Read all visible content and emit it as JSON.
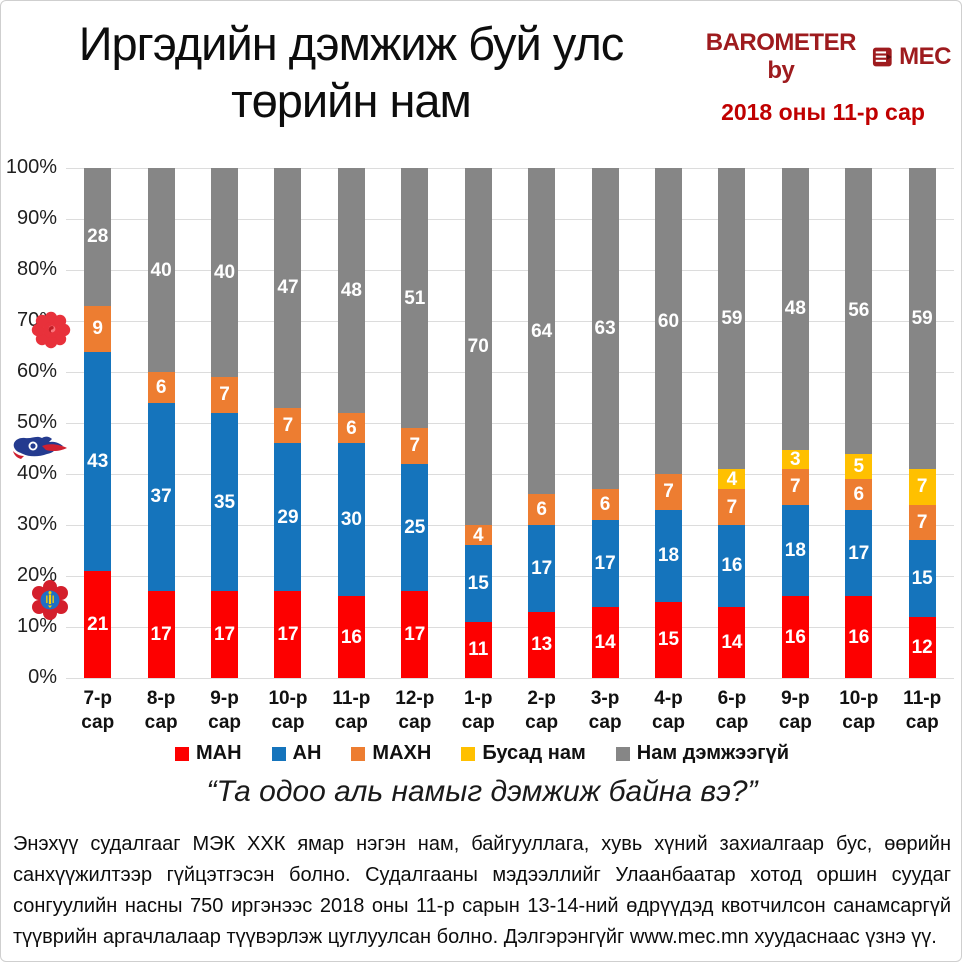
{
  "header": {
    "title": "Иргэдийн дэмжиж буй улс\nтөрийн нам",
    "brand": {
      "name": "BAROMETER by",
      "suffix": "MEC",
      "logo_icon": "mec-cube-icon",
      "name_color": "#9e1b1e",
      "date": "2018 оны 11-р сар",
      "date_color": "#c00000"
    }
  },
  "chart_data": {
    "type": "bar",
    "stacked": true,
    "percent_axis": true,
    "categories": [
      "7-р сар",
      "8-р сар",
      "9-р сар",
      "10-р\nсар",
      "11-р\nсар",
      "12-р\nсар",
      "1-р сар",
      "2-р сар",
      "3-р сар",
      "4-р сар",
      "6-р сар",
      "9-р сар",
      "10-р\nсар",
      "11-р\nсар"
    ],
    "series": [
      {
        "name": "МАН",
        "color": "#fd0000",
        "values": [
          21,
          17,
          17,
          17,
          16,
          17,
          11,
          13,
          14,
          15,
          14,
          16,
          16,
          12
        ]
      },
      {
        "name": "АН",
        "color": "#1574bc",
        "values": [
          43,
          37,
          35,
          29,
          30,
          25,
          15,
          17,
          17,
          18,
          16,
          18,
          17,
          15
        ]
      },
      {
        "name": "МАХН",
        "color": "#ed7d31",
        "values": [
          9,
          6,
          7,
          7,
          6,
          7,
          4,
          6,
          6,
          7,
          7,
          7,
          6,
          7
        ]
      },
      {
        "name": "Бусад нам",
        "color": "#ffc000",
        "values": [
          0,
          0,
          0,
          0,
          0,
          0,
          0,
          0,
          0,
          0,
          4,
          3,
          5,
          7
        ]
      },
      {
        "name": "Нам дэмжээгүй",
        "color": "#868686",
        "values": [
          28,
          40,
          40,
          47,
          48,
          51,
          70,
          64,
          63,
          60,
          59,
          48,
          56,
          59
        ]
      }
    ],
    "y_ticks": [
      "100%",
      "90%",
      "80%",
      "70%",
      "60%",
      "50%",
      "40%",
      "30%",
      "20%",
      "10%",
      "0%"
    ],
    "ylim": [
      0,
      100
    ],
    "grid": true,
    "legend_position": "bottom",
    "party_logo_icons": [
      "mprp-rose-logo-icon",
      "dp-horse-logo-icon",
      "mpp-rose-logo-icon"
    ]
  },
  "quote": "“Та одоо аль намыг дэмжиж байна вэ?”",
  "footer": "Энэхүү судалгааг МЭК ХХК ямар нэгэн нам, байгууллага, хувь хүний захиалгаар бус, өөрийн санхүүжилтээр гүйцэтгэсэн болно. Судалгааны мэдээллийг Улаанбаатар хотод оршин суудаг сонгуулийн насны 750 иргэнээс 2018 оны 11-р сарын 13-14-ний өдрүүдэд квотчилсон санамсаргүй түүврийн аргачлалаар түүвэрлэж цуглуулсан болно. Дэлгэрэнгүйг www.mec.mn хуудаснаас үзнэ үү."
}
